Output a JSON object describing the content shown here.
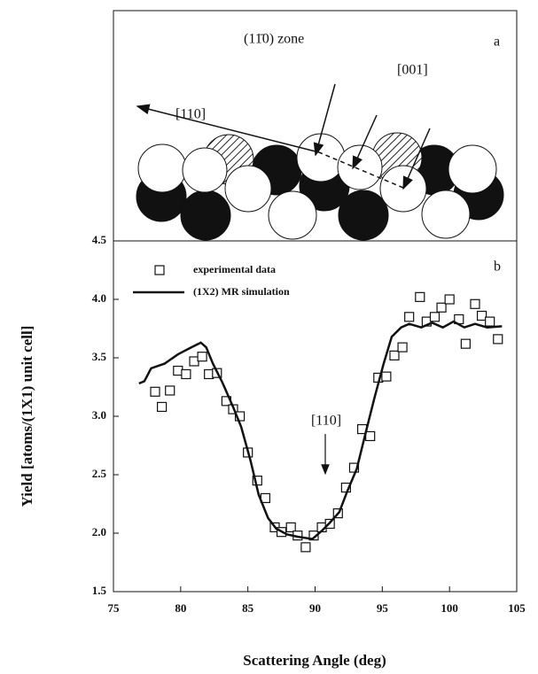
{
  "diagram": {
    "label": "a",
    "zone": "(11̄0) zone",
    "dir_001": "[001]",
    "dir_110": "[110]"
  },
  "chart_data": {
    "type": "line",
    "panel_label": "b",
    "x_label": "Scattering Angle  (deg)",
    "y_label": "Yield  [atoms/(1X1) unit cell]",
    "annotation": "[110]",
    "xlim": [
      75,
      105
    ],
    "xticks": [
      75,
      80,
      85,
      90,
      95,
      100,
      105
    ],
    "ylim": [
      1.5,
      4.5
    ],
    "yticks": [
      1.5,
      {
        "value": 2,
        "label": "2.0"
      },
      2.5,
      {
        "value": 3,
        "label": "3.0"
      },
      3.5,
      {
        "value": 4,
        "label": "4.0"
      },
      4.5
    ],
    "series": [
      {
        "name": "experimental data",
        "style": "square",
        "color": "#111111",
        "x": [
          78.1,
          78.6,
          79.2,
          79.8,
          80.4,
          81.0,
          81.6,
          82.1,
          82.7,
          83.4,
          83.9,
          84.4,
          85.0,
          85.7,
          86.3,
          87.0,
          87.5,
          88.2,
          88.7,
          89.3,
          89.9,
          90.5,
          91.1,
          91.7,
          92.3,
          92.9,
          93.5,
          94.1,
          94.7,
          95.3,
          95.9,
          96.5,
          97.0,
          97.8,
          98.3,
          98.9,
          99.4,
          100.0,
          100.7,
          101.2,
          101.9,
          102.4,
          103.0,
          103.6
        ],
        "values": [
          3.21,
          3.08,
          3.22,
          3.39,
          3.36,
          3.47,
          3.51,
          3.36,
          3.37,
          3.13,
          3.06,
          3.0,
          2.69,
          2.45,
          2.3,
          2.05,
          2.01,
          2.05,
          1.98,
          1.88,
          1.98,
          2.05,
          2.08,
          2.17,
          2.39,
          2.56,
          2.89,
          2.83,
          3.33,
          3.34,
          3.52,
          3.59,
          3.85,
          4.02,
          3.81,
          3.85,
          3.93,
          4.0,
          3.83,
          3.62,
          3.96,
          3.86,
          3.81,
          3.66
        ]
      },
      {
        "name": "(1X2) MR simulation",
        "style": "line",
        "color": "#111111",
        "x": [
          76.9,
          77.3,
          77.8,
          78.8,
          79.8,
          80.8,
          81.5,
          81.9,
          82.4,
          83.1,
          83.9,
          84.5,
          85.2,
          85.8,
          86.5,
          87.1,
          87.9,
          88.7,
          89.8,
          90.5,
          91.1,
          91.8,
          92.4,
          93.1,
          93.7,
          94.4,
          95.1,
          95.7,
          96.4,
          97.0,
          97.9,
          98.7,
          99.5,
          100.3,
          101.1,
          101.9,
          102.8,
          103.9
        ],
        "values": [
          3.28,
          3.3,
          3.41,
          3.45,
          3.53,
          3.59,
          3.63,
          3.59,
          3.45,
          3.29,
          3.08,
          2.91,
          2.62,
          2.33,
          2.13,
          2.04,
          1.99,
          1.97,
          1.95,
          2.02,
          2.09,
          2.18,
          2.36,
          2.55,
          2.83,
          3.15,
          3.45,
          3.68,
          3.76,
          3.79,
          3.76,
          3.8,
          3.76,
          3.81,
          3.76,
          3.79,
          3.76,
          3.77
        ]
      }
    ]
  }
}
